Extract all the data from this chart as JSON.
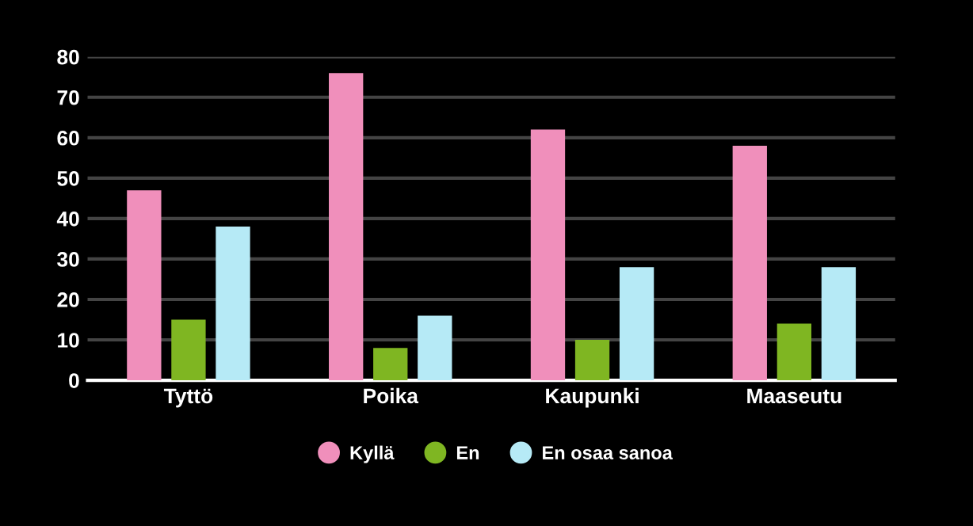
{
  "chart_data": {
    "type": "bar",
    "categories": [
      "Tyttö",
      "Poika",
      "Kaupunki",
      "Maaseutu"
    ],
    "series": [
      {
        "name": "Kyllä",
        "color": "#f08fbb",
        "values": [
          47,
          76,
          62,
          58
        ]
      },
      {
        "name": "En",
        "color": "#7fb622",
        "values": [
          15,
          8,
          10,
          14
        ]
      },
      {
        "name": "En osaa sanoa",
        "color": "#b6eaf6",
        "values": [
          38,
          16,
          28,
          28
        ]
      }
    ],
    "ylim": [
      0,
      80
    ],
    "yticks": [
      0,
      10,
      20,
      30,
      40,
      50,
      60,
      70,
      80
    ],
    "grid": "y",
    "legend": "bottom",
    "marker": "circle"
  }
}
